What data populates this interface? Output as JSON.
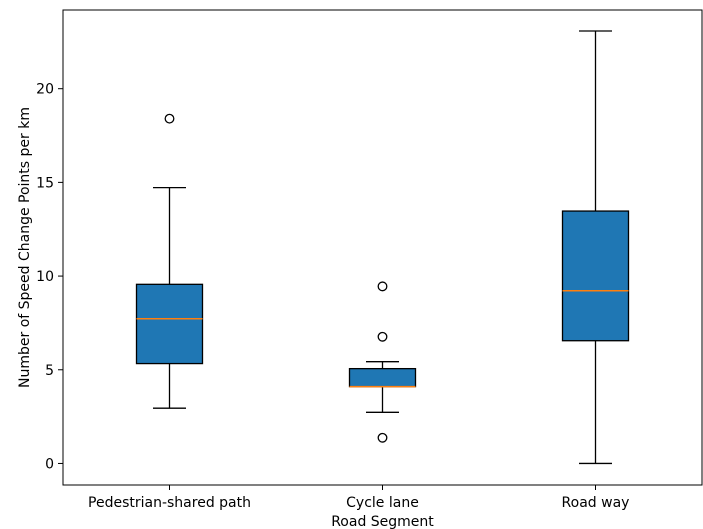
{
  "chart_data": {
    "type": "boxplot",
    "title": "",
    "xlabel": "Road Segment",
    "ylabel": "Number of Speed Change Points per km",
    "ylim": [
      -1.15,
      24.2
    ],
    "yticks": [
      0,
      5,
      10,
      15,
      20
    ],
    "grid": false,
    "box_color": "#1f77b4",
    "median_color": "#ff7f0e",
    "categories": [
      "Pedestrian-shared path",
      "Cycle lane",
      "Road way"
    ],
    "boxes": [
      {
        "category": "Pedestrian-shared path",
        "whisker_low": 2.95,
        "q1": 5.33,
        "median": 7.72,
        "q3": 9.56,
        "whisker_high": 14.72,
        "outliers": [
          18.4
        ]
      },
      {
        "category": "Cycle lane",
        "whisker_low": 2.73,
        "q1": 4.1,
        "median": 4.1,
        "q3": 5.06,
        "whisker_high": 5.43,
        "outliers": [
          1.37,
          6.76,
          9.45
        ]
      },
      {
        "category": "Road way",
        "whisker_low": 0.0,
        "q1": 6.55,
        "median": 9.22,
        "q3": 13.47,
        "whisker_high": 23.08,
        "outliers": []
      }
    ]
  }
}
